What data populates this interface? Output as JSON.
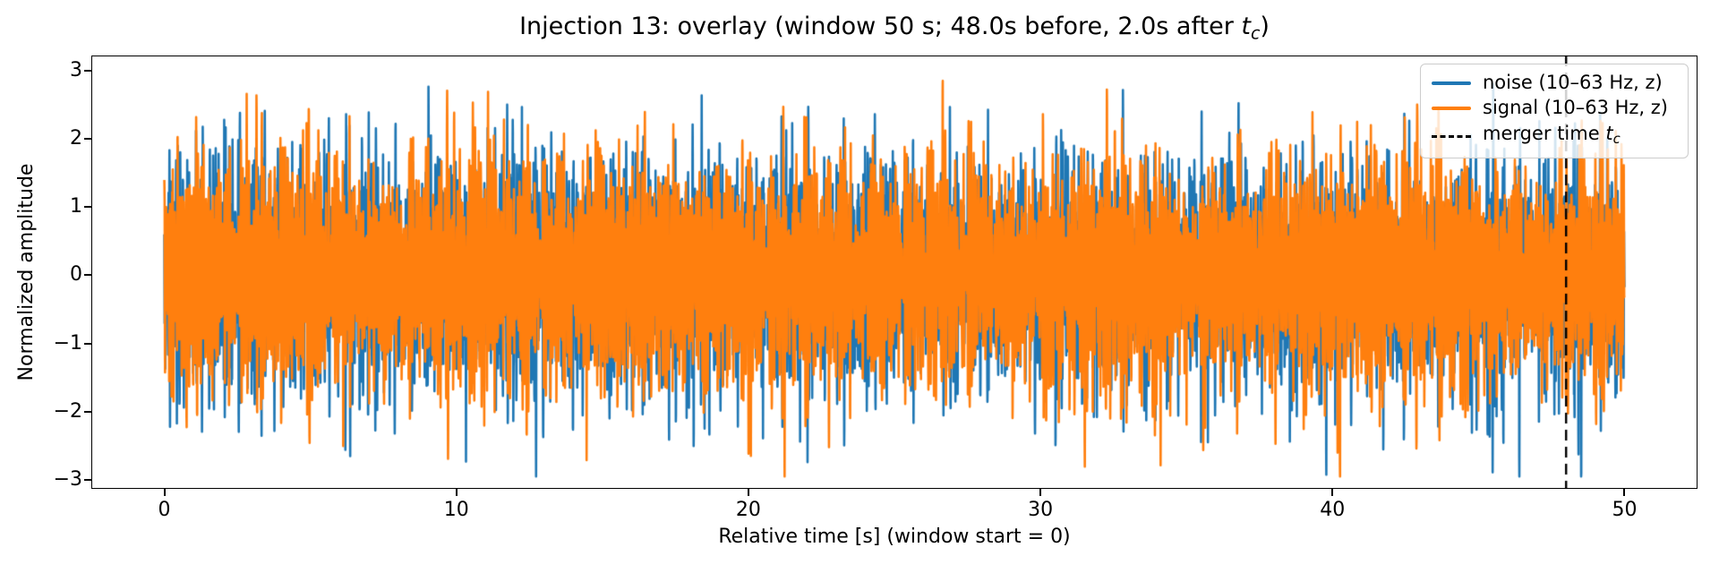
{
  "title": {
    "prefix": "Injection 13: overlay (window 50 s; 48.0s before, 2.0s after ",
    "math_var": "t",
    "math_sub": "c",
    "suffix": ")"
  },
  "axes": {
    "xlabel": "Relative time [s] (window start = 0)",
    "ylabel": "Normalized amplitude"
  },
  "legend": {
    "items": [
      {
        "label": "noise (10–63 Hz, z)",
        "color": "#1f77b4",
        "style": "solid"
      },
      {
        "label": "signal (10–63 Hz, z)",
        "color": "#ff7f0e",
        "style": "solid"
      },
      {
        "label_prefix": "merger time ",
        "math_var": "t",
        "math_sub": "c",
        "color": "#000000",
        "style": "dashed"
      }
    ]
  },
  "chart_data": {
    "type": "line",
    "title": "Injection 13: overlay (window 50 s; 48.0s before, 2.0s after t_c)",
    "xlabel": "Relative time [s] (window start = 0)",
    "ylabel": "Normalized amplitude",
    "xlim": [
      -2.5,
      52.5
    ],
    "ylim": [
      -3.13,
      3.22
    ],
    "grid": false,
    "legend_position": "upper right",
    "x_ticks": [
      {
        "value": 0,
        "label": "0"
      },
      {
        "value": 10,
        "label": "10"
      },
      {
        "value": 20,
        "label": "20"
      },
      {
        "value": 30,
        "label": "30"
      },
      {
        "value": 40,
        "label": "40"
      },
      {
        "value": 50,
        "label": "50"
      }
    ],
    "y_ticks": [
      {
        "value": 3,
        "label": "3"
      },
      {
        "value": 2,
        "label": "2"
      },
      {
        "value": 1,
        "label": "1"
      },
      {
        "value": 0,
        "label": "0"
      },
      {
        "value": -1,
        "label": "−1"
      },
      {
        "value": -2,
        "label": "−2"
      },
      {
        "value": -3,
        "label": "−3"
      }
    ],
    "series": [
      {
        "name": "noise (10–63 Hz, z)",
        "color": "#1f77b4",
        "kind": "band_limited_noise_zscored",
        "band_hz": [
          10,
          63
        ],
        "duration_s": 50,
        "t_start": 0,
        "sample_rate_hz": 200,
        "std": 0.84,
        "peak_abs": 2.95,
        "spectral_slope": 1.2,
        "n_components": 72,
        "seed": 1337,
        "zorder": 1
      },
      {
        "name": "signal (10–63 Hz, z)",
        "color": "#ff7f0e",
        "kind": "band_limited_noise_zscored",
        "band_hz": [
          10,
          63
        ],
        "duration_s": 50,
        "t_start": 0,
        "sample_rate_hz": 200,
        "std": 0.84,
        "peak_abs": 2.95,
        "spectral_slope": 1.2,
        "n_components": 72,
        "seed": 7777,
        "zorder": 2
      }
    ],
    "annotations": [
      {
        "type": "vline",
        "x": 48.0,
        "style": "dashed",
        "color": "#000000",
        "label": "merger time t_c"
      }
    ]
  }
}
